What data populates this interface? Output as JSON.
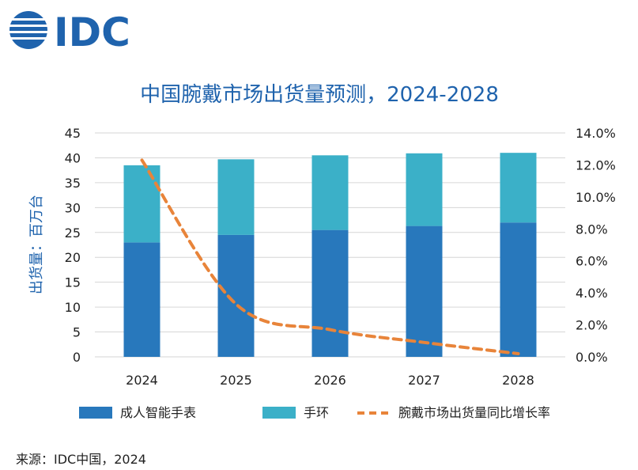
{
  "brand": {
    "name": "IDC"
  },
  "colors": {
    "brand": "#1f63ad",
    "title": "#1f63ad",
    "adult_watch": "#2878bc",
    "band": "#3bb0c8",
    "yoy_line": "#e8843a",
    "grid": "#d6d6d6",
    "text": "#222222"
  },
  "source": "来源：IDC中国，2024",
  "chart_data": {
    "type": "bar",
    "stacked": true,
    "title": "中国腕戴市场出货量预测，2024-2028",
    "ylabel": "出货量：百万台",
    "xlabel": "",
    "categories": [
      "2024",
      "2025",
      "2026",
      "2027",
      "2028"
    ],
    "ylim": [
      0,
      45
    ],
    "yticks": [
      "0",
      "5",
      "10",
      "15",
      "20",
      "25",
      "30",
      "35",
      "40",
      "45"
    ],
    "y2lim": [
      0,
      0.14
    ],
    "y2ticks": [
      "0.0%",
      "2.0%",
      "4.0%",
      "6.0%",
      "8.0%",
      "10.0%",
      "12.0%",
      "14.0%"
    ],
    "series": [
      {
        "name": "成人智能手表",
        "type": "bar",
        "values": [
          23.0,
          24.5,
          25.5,
          26.3,
          27.0
        ]
      },
      {
        "name": "手环",
        "type": "bar",
        "values": [
          15.5,
          15.2,
          15.0,
          14.6,
          14.0
        ]
      },
      {
        "name": "腕戴市场出货量同比增长率",
        "type": "line",
        "axis": "right",
        "values": [
          0.123,
          0.033,
          0.017,
          0.009,
          0.002
        ]
      }
    ],
    "legend_position": "bottom",
    "grid": true
  }
}
